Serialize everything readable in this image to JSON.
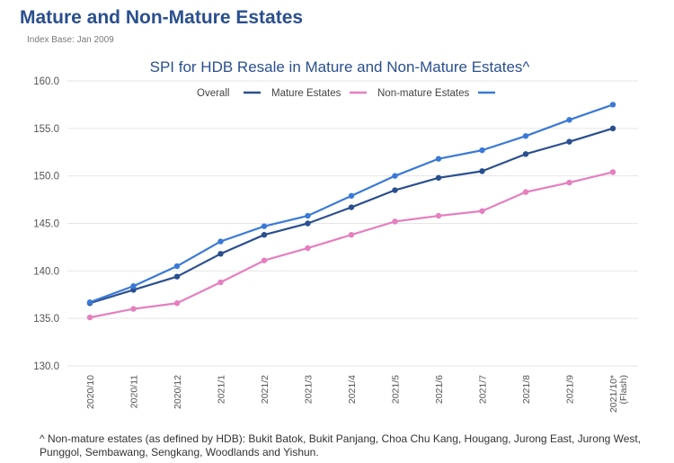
{
  "header": {
    "title": "Mature and Non-Mature Estates",
    "subtitle": "Index Base: Jan 2009"
  },
  "footnote": "^ Non-mature estates (as defined by HDB): Bukit Batok, Bukit Panjang, Choa Chu Kang, Hougang, Jurong East, Jurong West, Punggol, Sembawang, Sengkang, Woodlands and Yishun.",
  "chart_data": {
    "type": "line",
    "title": "SPI for HDB Resale in Mature and Non-Mature Estates^",
    "xlabel": "",
    "ylabel": "",
    "ylim": [
      130,
      160
    ],
    "yticks": [
      "130.0",
      "135.0",
      "140.0",
      "145.0",
      "150.0",
      "155.0",
      "160.0"
    ],
    "grid": true,
    "legend_position": "top-left",
    "categories": [
      "2020/10",
      "2020/11",
      "2020/12",
      "2021/1",
      "2021/2",
      "2021/3",
      "2021/4",
      "2021/5",
      "2021/6",
      "2021/7",
      "2021/8",
      "2021/9",
      "2021/10*"
    ],
    "category_sublabels": [
      "",
      "",
      "",
      "",
      "",
      "",
      "",
      "",
      "",
      "",
      "",
      "",
      "(Flash)"
    ],
    "series": [
      {
        "name": "Overall",
        "color": "#2a4f8f",
        "values": [
          136.6,
          138.0,
          139.4,
          141.8,
          143.8,
          145.0,
          146.7,
          148.5,
          149.8,
          150.5,
          152.3,
          153.6,
          155.0
        ]
      },
      {
        "name": "Mature Estates",
        "color": "#e57fbf",
        "values": [
          135.1,
          136.0,
          136.6,
          138.8,
          141.1,
          142.4,
          143.8,
          145.2,
          145.8,
          146.3,
          148.3,
          149.3,
          150.4
        ]
      },
      {
        "name": "Non-mature Estates",
        "color": "#3a79d6",
        "values": [
          136.7,
          138.4,
          140.5,
          143.1,
          144.7,
          145.8,
          147.9,
          150.0,
          151.8,
          152.7,
          154.2,
          155.9,
          157.5
        ]
      }
    ]
  }
}
